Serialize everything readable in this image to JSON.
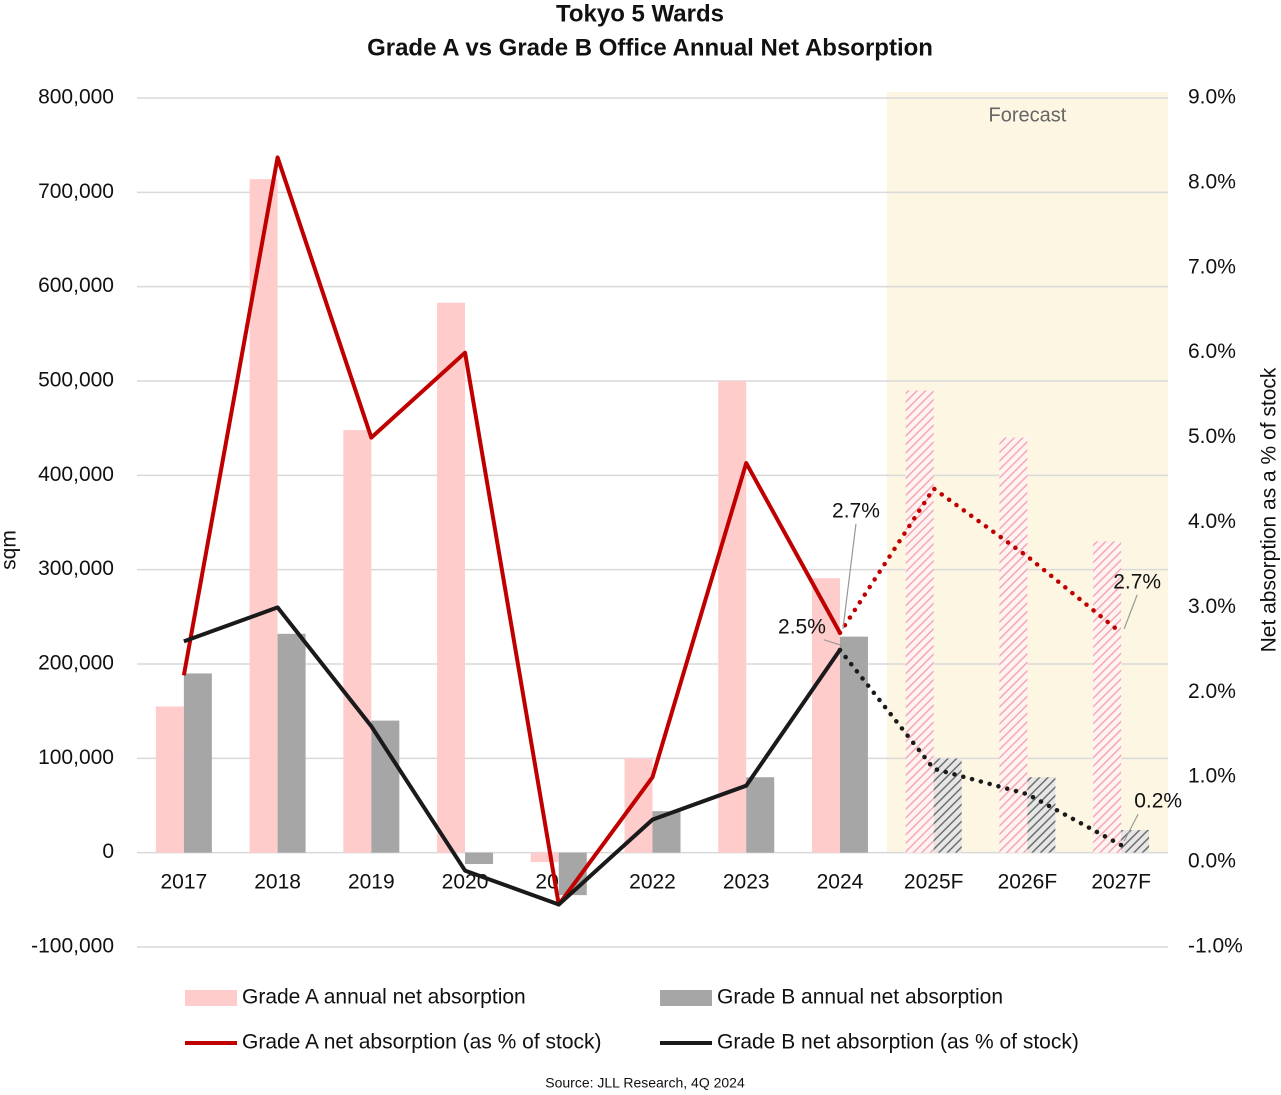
{
  "chart_data": {
    "type": "bar_line",
    "title": "Tokyo 5 Wards",
    "subtitle": "Grade A vs Grade B Office Annual Net Absorption",
    "y_label": "sqm",
    "y2_label": "Net absorption as a % of stock",
    "source": "Source: JLL Research, 4Q 2024",
    "annotation": "Forecast",
    "forecast_start": 8,
    "categories": [
      "2017",
      "2018",
      "2019",
      "2020",
      "2021",
      "2022",
      "2023",
      "2024",
      "2025F",
      "2026F",
      "2027F"
    ],
    "ylim": [
      -100000,
      800000
    ],
    "yticks": [
      {
        "value": -100000,
        "label": "-100,000"
      },
      0,
      {
        "value": 100000,
        "label": "100,000"
      },
      {
        "value": 200000,
        "label": "200,000"
      },
      {
        "value": 300000,
        "label": "300,000"
      },
      {
        "value": 400000,
        "label": "400,000"
      },
      {
        "value": 500000,
        "label": "500,000"
      },
      {
        "value": 600000,
        "label": "600,000"
      },
      {
        "value": 700000,
        "label": "700,000"
      },
      {
        "value": 800000,
        "label": "800,000"
      }
    ],
    "y2lim": [
      -1,
      9
    ],
    "y2ticks": [
      {
        "value": -1,
        "label": "-1.0%"
      },
      {
        "value": 0,
        "label": "0.0%"
      },
      {
        "value": 1,
        "label": "1.0%"
      },
      {
        "value": 2,
        "label": "2.0%"
      },
      {
        "value": 3,
        "label": "3.0%"
      },
      {
        "value": 4,
        "label": "4.0%"
      },
      {
        "value": 5,
        "label": "5.0%"
      },
      {
        "value": 6,
        "label": "6.0%"
      },
      {
        "value": 7,
        "label": "7.0%"
      },
      {
        "value": 8,
        "label": "8.0%"
      },
      {
        "value": 9,
        "label": "9.0%"
      }
    ],
    "grid": true,
    "series": [
      {
        "name": "Grade A annual net absorption",
        "kind": "bar",
        "color": "#ffcccc",
        "values": [
          155000,
          714000,
          448000,
          583000,
          -10000,
          100000,
          500000,
          291000,
          490000,
          440000,
          330000
        ]
      },
      {
        "name": "Grade B annual net absorption",
        "kind": "bar",
        "color": "#a6a6a6",
        "values": [
          190000,
          232000,
          140000,
          -12000,
          -45000,
          44000,
          80000,
          229000,
          100000,
          80000,
          24000
        ]
      },
      {
        "name": "Grade A net absorption (as % of stock)",
        "kind": "line",
        "axis": "y2",
        "color": "#c00000",
        "values": [
          2.2,
          8.3,
          5.0,
          6.0,
          -0.5,
          1.0,
          4.7,
          2.7,
          4.4,
          3.6,
          2.7
        ],
        "value_labels": [
          null,
          null,
          null,
          null,
          null,
          null,
          null,
          "2.7%",
          null,
          null,
          "2.7%"
        ]
      },
      {
        "name": "Grade B net absorption (as % of stock)",
        "kind": "line",
        "axis": "y2",
        "color": "#1a1a1a",
        "values": [
          2.6,
          3.0,
          1.6,
          -0.1,
          -0.5,
          0.5,
          0.9,
          2.5,
          1.1,
          0.8,
          0.2
        ],
        "value_labels": [
          null,
          null,
          null,
          null,
          null,
          null,
          null,
          "2.5%",
          null,
          null,
          "0.2%"
        ]
      }
    ]
  }
}
